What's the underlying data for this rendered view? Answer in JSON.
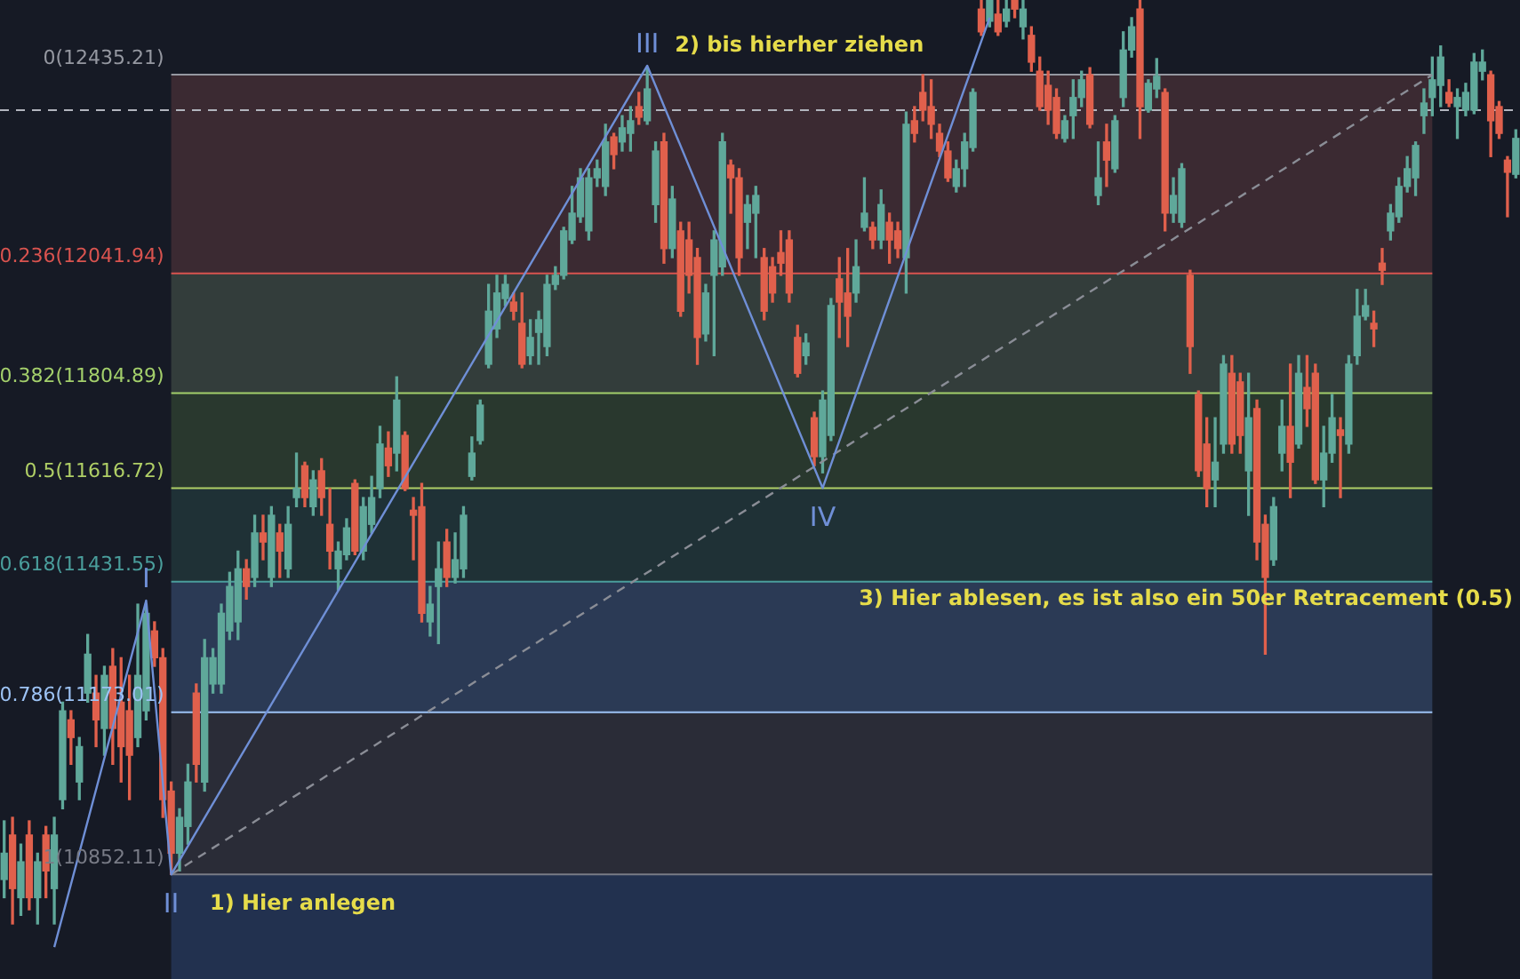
{
  "chart_data": {
    "type": "candlestick",
    "categories": [
      null,
      null,
      null,
      null,
      null,
      null,
      null,
      null,
      null,
      null,
      null,
      null,
      null,
      null,
      null,
      null,
      null,
      null,
      null,
      null,
      null,
      null,
      null,
      null,
      null,
      null,
      null,
      null,
      null,
      null,
      null,
      null,
      null,
      null,
      null,
      null,
      null,
      null,
      null,
      null,
      null,
      null,
      null,
      null,
      null,
      null,
      null,
      null,
      null,
      null,
      null,
      null,
      null,
      null,
      null,
      null,
      null,
      null,
      null,
      null,
      null,
      null,
      null,
      null,
      null,
      null,
      null,
      null,
      null,
      null,
      null,
      null,
      null,
      null,
      null,
      null,
      null,
      null,
      null,
      null,
      null,
      null,
      null,
      null,
      null,
      null,
      null,
      null,
      null,
      null,
      null,
      null,
      null,
      null,
      null,
      null,
      null,
      null,
      null,
      null,
      null,
      null,
      null,
      null,
      null,
      null,
      null,
      null,
      null,
      null,
      null,
      null,
      null,
      null,
      null,
      null,
      null,
      null,
      null,
      null,
      null,
      null,
      null,
      null,
      null,
      null,
      null,
      null,
      null,
      null,
      null,
      null,
      null,
      null,
      null,
      null,
      null,
      null,
      null,
      null,
      null,
      null,
      null,
      null,
      null,
      null,
      null,
      null,
      null,
      null,
      null,
      null,
      null,
      null,
      null,
      null,
      null,
      null,
      null,
      null,
      null,
      null,
      null,
      null,
      null,
      null,
      null,
      null,
      null,
      null,
      null,
      null,
      null,
      null,
      null,
      null,
      null,
      null,
      null,
      null,
      null,
      null
    ],
    "ohlc": [
      [
        10842,
        10958,
        10806,
        10894
      ],
      [
        10930,
        10965,
        10754,
        10824
      ],
      [
        10806,
        10912,
        10771,
        10877
      ],
      [
        10930,
        10958,
        10782,
        10806
      ],
      [
        10806,
        10894,
        10754,
        10877
      ],
      [
        10930,
        10947,
        10806,
        10859
      ],
      [
        10824,
        10965,
        10754,
        10930
      ],
      [
        11000,
        11193,
        10982,
        11176
      ],
      [
        11158,
        11176,
        11070,
        11123
      ],
      [
        11035,
        11123,
        11000,
        11105
      ],
      [
        11211,
        11327,
        11193,
        11288
      ],
      [
        11211,
        11246,
        11105,
        11158
      ],
      [
        11141,
        11264,
        11088,
        11246
      ],
      [
        11264,
        11299,
        11070,
        11141
      ],
      [
        11193,
        11281,
        11035,
        11105
      ],
      [
        11176,
        11246,
        11000,
        11088
      ],
      [
        11123,
        11387,
        11105,
        11246
      ],
      [
        11176,
        11387,
        11158,
        11369
      ],
      [
        11334,
        11352,
        11264,
        11281
      ],
      [
        11281,
        11299,
        10965,
        11000
      ],
      [
        11017,
        11035,
        10852,
        10894
      ],
      [
        10894,
        10982,
        10859,
        10965
      ],
      [
        10947,
        11070,
        10912,
        11035
      ],
      [
        11211,
        11229,
        11035,
        11070
      ],
      [
        11035,
        11317,
        11017,
        11281
      ],
      [
        11229,
        11299,
        11211,
        11281
      ],
      [
        11229,
        11387,
        11211,
        11369
      ],
      [
        11334,
        11450,
        11317,
        11422
      ],
      [
        11352,
        11492,
        11317,
        11457
      ],
      [
        11457,
        11475,
        11397,
        11422
      ],
      [
        11440,
        11563,
        11422,
        11528
      ],
      [
        11528,
        11563,
        11475,
        11510
      ],
      [
        11440,
        11580,
        11422,
        11563
      ],
      [
        11528,
        11545,
        11440,
        11492
      ],
      [
        11457,
        11580,
        11440,
        11545
      ],
      [
        11598,
        11686,
        11580,
        11616
      ],
      [
        11661,
        11668,
        11580,
        11598
      ],
      [
        11580,
        11651,
        11563,
        11633
      ],
      [
        11651,
        11675,
        11563,
        11598
      ],
      [
        11545,
        11616,
        11457,
        11492
      ],
      [
        11457,
        11510,
        11415,
        11492
      ],
      [
        11485,
        11556,
        11475,
        11538
      ],
      [
        11626,
        11633,
        11485,
        11492
      ],
      [
        11492,
        11598,
        11475,
        11580
      ],
      [
        11545,
        11640,
        11528,
        11598
      ],
      [
        11616,
        11739,
        11598,
        11704
      ],
      [
        11696,
        11728,
        11640,
        11661
      ],
      [
        11686,
        11837,
        11651,
        11791
      ],
      [
        11721,
        11728,
        11612,
        11616
      ],
      [
        11573,
        11598,
        11475,
        11563
      ],
      [
        11580,
        11626,
        11352,
        11369
      ],
      [
        11352,
        11422,
        11324,
        11387
      ],
      [
        11422,
        11510,
        11309,
        11457
      ],
      [
        11510,
        11535,
        11422,
        11440
      ],
      [
        11440,
        11528,
        11429,
        11475
      ],
      [
        11457,
        11580,
        11440,
        11563
      ],
      [
        11640,
        11718,
        11633,
        11686
      ],
      [
        11711,
        11791,
        11704,
        11781
      ],
      [
        11862,
        12020,
        11855,
        11967
      ],
      [
        11932,
        12038,
        11915,
        12003
      ],
      [
        11992,
        12038,
        11978,
        12020
      ],
      [
        11985,
        12003,
        11950,
        11967
      ],
      [
        11943,
        12003,
        11855,
        11862
      ],
      [
        11879,
        11950,
        11862,
        11915
      ],
      [
        11925,
        11967,
        11862,
        11950
      ],
      [
        11897,
        12038,
        11879,
        12020
      ],
      [
        12020,
        12055,
        12010,
        12038
      ],
      [
        12038,
        12133,
        12031,
        12126
      ],
      [
        12108,
        12214,
        12101,
        12161
      ],
      [
        12154,
        12249,
        12143,
        12231
      ],
      [
        12126,
        12249,
        12108,
        12231
      ],
      [
        12231,
        12266,
        12214,
        12249
      ],
      [
        12214,
        12337,
        12196,
        12302
      ],
      [
        12312,
        12319,
        12249,
        12277
      ],
      [
        12302,
        12354,
        12284,
        12330
      ],
      [
        12319,
        12372,
        12284,
        12344
      ],
      [
        12372,
        12400,
        12337,
        12351
      ],
      [
        12344,
        12449,
        12337,
        12407
      ],
      [
        12178,
        12302,
        12143,
        12284
      ],
      [
        12302,
        12319,
        12062,
        12091
      ],
      [
        12091,
        12214,
        12073,
        12189
      ],
      [
        12126,
        12143,
        11957,
        11967
      ],
      [
        12108,
        12143,
        12003,
        12038
      ],
      [
        12073,
        12091,
        11862,
        11915
      ],
      [
        11922,
        12020,
        11908,
        12003
      ],
      [
        12038,
        12126,
        11879,
        12108
      ],
      [
        12055,
        12319,
        12038,
        12302
      ],
      [
        12256,
        12266,
        12161,
        12231
      ],
      [
        12231,
        12249,
        12038,
        12073
      ],
      [
        12143,
        12196,
        12091,
        12178
      ],
      [
        12161,
        12214,
        12073,
        12196
      ],
      [
        12073,
        12091,
        11950,
        11967
      ],
      [
        12055,
        12073,
        11985,
        12003
      ],
      [
        12083,
        12126,
        12038,
        12062
      ],
      [
        12108,
        12126,
        11985,
        12003
      ],
      [
        11915,
        11939,
        11837,
        11844
      ],
      [
        11879,
        11922,
        11862,
        11904
      ],
      [
        11756,
        11767,
        11661,
        11679
      ],
      [
        11679,
        11809,
        11647,
        11791
      ],
      [
        11721,
        11992,
        11711,
        11978
      ],
      [
        12031,
        12073,
        11915,
        11985
      ],
      [
        12003,
        12091,
        11897,
        11957
      ],
      [
        12003,
        12108,
        11985,
        12055
      ],
      [
        12133,
        12231,
        12126,
        12161
      ],
      [
        12133,
        12143,
        12091,
        12108
      ],
      [
        12108,
        12207,
        12091,
        12178
      ],
      [
        12143,
        12161,
        12062,
        12108
      ],
      [
        12126,
        12143,
        12073,
        12091
      ],
      [
        12073,
        12361,
        12003,
        12337
      ],
      [
        12344,
        12372,
        12302,
        12319
      ],
      [
        12400,
        12435,
        12344,
        12365
      ],
      [
        12372,
        12425,
        12309,
        12337
      ],
      [
        12319,
        12337,
        12273,
        12284
      ],
      [
        12284,
        12302,
        12224,
        12231
      ],
      [
        12214,
        12266,
        12203,
        12249
      ],
      [
        12249,
        12319,
        12214,
        12302
      ],
      [
        12291,
        12407,
        12284,
        12400
      ],
      [
        12565,
        12583,
        12513,
        12520
      ],
      [
        12541,
        12583,
        12530,
        12583
      ],
      [
        12555,
        12583,
        12513,
        12520
      ],
      [
        12541,
        12583,
        12530,
        12565
      ],
      [
        12583,
        12583,
        12548,
        12565
      ],
      [
        12530,
        12583,
        12506,
        12565
      ],
      [
        12513,
        12530,
        12442,
        12460
      ],
      [
        12442,
        12470,
        12365,
        12372
      ],
      [
        12414,
        12442,
        12337,
        12365
      ],
      [
        12390,
        12407,
        12309,
        12319
      ],
      [
        12309,
        12354,
        12302,
        12344
      ],
      [
        12354,
        12425,
        12309,
        12390
      ],
      [
        12390,
        12442,
        12372,
        12425
      ],
      [
        12435,
        12449,
        12330,
        12337
      ],
      [
        12196,
        12302,
        12178,
        12231
      ],
      [
        12302,
        12337,
        12214,
        12266
      ],
      [
        12249,
        12354,
        12242,
        12344
      ],
      [
        12390,
        12520,
        12372,
        12484
      ],
      [
        12484,
        12548,
        12470,
        12530
      ],
      [
        12565,
        12583,
        12309,
        12372
      ],
      [
        12365,
        12425,
        12361,
        12418
      ],
      [
        12407,
        12467,
        12390,
        12432
      ],
      [
        12400,
        12407,
        12126,
        12161
      ],
      [
        12161,
        12231,
        12143,
        12196
      ],
      [
        12143,
        12259,
        12133,
        12249
      ],
      [
        12038,
        12048,
        11844,
        11897
      ],
      [
        11802,
        11809,
        11640,
        11651
      ],
      [
        11704,
        11756,
        11580,
        11616
      ],
      [
        11633,
        11756,
        11580,
        11668
      ],
      [
        11704,
        11879,
        11686,
        11862
      ],
      [
        11844,
        11879,
        11686,
        11704
      ],
      [
        11827,
        11844,
        11686,
        11721
      ],
      [
        11651,
        11844,
        11563,
        11756
      ],
      [
        11774,
        11791,
        11475,
        11510
      ],
      [
        11545,
        11563,
        11288,
        11440
      ],
      [
        11475,
        11598,
        11464,
        11580
      ],
      [
        11686,
        11791,
        11651,
        11739
      ],
      [
        11739,
        11862,
        11598,
        11668
      ],
      [
        11704,
        11879,
        11696,
        11844
      ],
      [
        11816,
        11879,
        11739,
        11774
      ],
      [
        11844,
        11862,
        11626,
        11633
      ],
      [
        11633,
        11739,
        11580,
        11686
      ],
      [
        11686,
        11802,
        11668,
        11756
      ],
      [
        11732,
        11756,
        11598,
        11721
      ],
      [
        11704,
        11879,
        11686,
        11862
      ],
      [
        11879,
        12010,
        11862,
        11957
      ],
      [
        11957,
        12010,
        11950,
        11978
      ],
      [
        11943,
        11967,
        11897,
        11932
      ],
      [
        12062,
        12091,
        12020,
        12048
      ],
      [
        12126,
        12178,
        12108,
        12161
      ],
      [
        12154,
        12231,
        12143,
        12214
      ],
      [
        12214,
        12273,
        12203,
        12249
      ],
      [
        12231,
        12302,
        12196,
        12295
      ],
      [
        12354,
        12407,
        12319,
        12379
      ],
      [
        12390,
        12470,
        12354,
        12425
      ],
      [
        12414,
        12492,
        12372,
        12470
      ],
      [
        12400,
        12425,
        12372,
        12379
      ],
      [
        12372,
        12407,
        12309,
        12390
      ],
      [
        12365,
        12418,
        12354,
        12400
      ],
      [
        12365,
        12477,
        12358,
        12460
      ],
      [
        12442,
        12484,
        12425,
        12460
      ],
      [
        12435,
        12442,
        12273,
        12344
      ],
      [
        12372,
        12382,
        12309,
        12319
      ],
      [
        12266,
        12273,
        12154,
        12242
      ],
      [
        12238,
        12326,
        12231,
        12309
      ]
    ],
    "ylim": [
      10645,
      12583
    ],
    "tick_labels": false,
    "series": [
      {
        "type": "line",
        "color": "#6f8fd6",
        "values": [
          null,
          null,
          null,
          null,
          null,
          null,
          10708,
          null,
          null,
          null,
          null,
          null,
          null,
          null,
          null,
          null,
          null,
          11394,
          null,
          null,
          10852,
          null,
          null,
          null,
          null,
          null,
          null,
          null,
          null,
          null,
          null,
          null,
          null,
          null,
          null,
          null,
          null,
          null,
          null,
          null,
          null,
          null,
          null,
          null,
          null,
          null,
          null,
          null,
          null,
          null,
          null,
          null,
          null,
          null,
          null,
          null,
          null,
          null,
          null,
          null,
          null,
          null,
          null,
          null,
          null,
          null,
          null,
          null,
          null,
          null,
          null,
          null,
          null,
          null,
          null,
          null,
          null,
          12453,
          null,
          null,
          null,
          null,
          null,
          null,
          null,
          null,
          null,
          null,
          null,
          null,
          null,
          null,
          null,
          null,
          null,
          null,
          null,
          null,
          11617,
          null,
          null,
          null,
          null,
          null,
          null,
          null,
          null,
          null,
          null,
          null,
          null,
          null,
          null,
          null,
          null,
          null,
          null,
          null,
          12548,
          null,
          null,
          null,
          null,
          null,
          null,
          null,
          null,
          null,
          null,
          null,
          null,
          null,
          null,
          null,
          null,
          null,
          null,
          null,
          null,
          null,
          null,
          null,
          null,
          null,
          null,
          null,
          null,
          null,
          null,
          null,
          null,
          null,
          null,
          null,
          null,
          null,
          null,
          null,
          null,
          null,
          null,
          null,
          null,
          null,
          null,
          null,
          null,
          null,
          null,
          null,
          null,
          null,
          null,
          null,
          null,
          null,
          null,
          null,
          null,
          null,
          null,
          null
        ],
        "value_labels": [
          null,
          null,
          null,
          null,
          null,
          null,
          null,
          null,
          null,
          null,
          null,
          null,
          null,
          null,
          null,
          null,
          null,
          "I",
          null,
          null,
          "II",
          null,
          null,
          null,
          null,
          null,
          null,
          null,
          null,
          null,
          null,
          null,
          null,
          null,
          null,
          null,
          null,
          null,
          null,
          null,
          null,
          null,
          null,
          null,
          null,
          null,
          null,
          null,
          null,
          null,
          null,
          null,
          null,
          null,
          null,
          null,
          null,
          null,
          null,
          null,
          null,
          null,
          null,
          null,
          null,
          null,
          null,
          null,
          null,
          null,
          null,
          null,
          null,
          null,
          null,
          null,
          null,
          "III",
          null,
          null,
          null,
          null,
          null,
          null,
          null,
          null,
          null,
          null,
          null,
          null,
          null,
          null,
          null,
          null,
          null,
          null,
          null,
          null,
          "IV",
          null,
          null,
          null,
          null,
          null,
          null,
          null,
          null,
          null,
          null,
          null,
          null,
          null,
          null,
          null,
          null,
          null,
          null,
          null,
          null,
          null,
          null,
          null,
          null,
          null,
          null,
          null,
          null,
          null,
          null,
          null,
          null,
          null,
          null,
          null,
          null,
          null,
          null,
          null,
          null,
          null,
          null,
          null,
          null,
          null,
          null,
          null,
          null,
          null,
          null,
          null,
          null,
          null,
          null,
          null,
          null,
          null,
          null,
          null,
          null,
          null,
          null,
          null,
          null,
          null,
          null,
          null,
          null,
          null,
          null,
          null,
          null,
          null,
          null,
          null,
          null,
          null,
          null,
          null,
          null,
          null,
          null,
          null
        ]
      },
      {
        "type": "line",
        "color": "#8a8d96",
        "line_style": "dashed",
        "values": [
          null,
          null,
          null,
          null,
          null,
          null,
          null,
          null,
          null,
          null,
          null,
          null,
          null,
          null,
          null,
          null,
          null,
          null,
          null,
          null,
          10852,
          null,
          null,
          null,
          null,
          null,
          null,
          null,
          null,
          null,
          null,
          null,
          null,
          null,
          null,
          null,
          null,
          null,
          null,
          null,
          null,
          null,
          null,
          null,
          null,
          null,
          null,
          null,
          null,
          null,
          null,
          null,
          null,
          null,
          null,
          null,
          null,
          null,
          null,
          null,
          null,
          null,
          null,
          null,
          null,
          null,
          null,
          null,
          null,
          null,
          null,
          null,
          null,
          null,
          null,
          null,
          null,
          null,
          null,
          null,
          null,
          null,
          null,
          null,
          null,
          null,
          null,
          null,
          null,
          null,
          null,
          null,
          null,
          null,
          null,
          null,
          null,
          null,
          null,
          null,
          null,
          null,
          null,
          null,
          null,
          null,
          null,
          null,
          null,
          null,
          null,
          null,
          null,
          null,
          null,
          null,
          null,
          null,
          null,
          null,
          null,
          null,
          null,
          null,
          null,
          null,
          null,
          null,
          null,
          null,
          null,
          null,
          null,
          null,
          null,
          null,
          null,
          null,
          null,
          null,
          null,
          null,
          null,
          null,
          null,
          null,
          null,
          null,
          null,
          null,
          null,
          null,
          null,
          null,
          null,
          null,
          null,
          null,
          null,
          null,
          null,
          null,
          null,
          null,
          null,
          null,
          null,
          null,
          null,
          null,
          null,
          12435,
          null,
          null,
          null,
          null,
          null,
          null,
          null,
          null,
          null,
          null
        ]
      }
    ],
    "bands": [
      {
        "axis": "y",
        "from": 12041.94,
        "to": 12435.21,
        "color": "#3b2a32"
      },
      {
        "axis": "y",
        "from": 11804.89,
        "to": 12041.94,
        "color": "#333d3b"
      },
      {
        "axis": "y",
        "from": 11616.72,
        "to": 11804.89,
        "color": "#29382e"
      },
      {
        "axis": "y",
        "from": 11431.55,
        "to": 11616.72,
        "color": "#1f3136"
      },
      {
        "axis": "y",
        "from": 11173.01,
        "to": 11431.55,
        "color": "#2b3a55"
      },
      {
        "axis": "y",
        "from": 10852.11,
        "to": 11173.01,
        "color": "#2a2c37"
      },
      {
        "axis": "y",
        "from": 10645,
        "to": 10852.11,
        "color": "#22314f"
      }
    ],
    "ref_lines": [
      {
        "axis": "y",
        "value": 12435.21,
        "label": "0(12435.21)",
        "color": "#9598a1"
      },
      {
        "axis": "y",
        "value": 12041.94,
        "label": "0.236(12041.94)",
        "color": "#d9534f"
      },
      {
        "axis": "y",
        "value": 11804.89,
        "label": "0.382(11804.89)",
        "color": "#a3cf6b"
      },
      {
        "axis": "y",
        "value": 11616.72,
        "label": "0.5(11616.72)",
        "color": "#b0cf66"
      },
      {
        "axis": "y",
        "value": 11431.55,
        "label": "0.618(11431.55)",
        "color": "#4a9e9c"
      },
      {
        "axis": "y",
        "value": 11173.01,
        "label": "0.786(11173.01)",
        "color": "#9dc3f5"
      },
      {
        "axis": "y",
        "value": 10852.11,
        "label": "1(10852.11)",
        "color": "#787b86"
      },
      {
        "axis": "y",
        "value": 12365,
        "color": "#b2b5be",
        "line_style": "dashed"
      }
    ],
    "annotations": [
      "1) Hier anlegen",
      "2) bis hierher ziehen",
      "3) Hier ablesen, es ist also ein 50er Retracement (0.5)"
    ]
  }
}
